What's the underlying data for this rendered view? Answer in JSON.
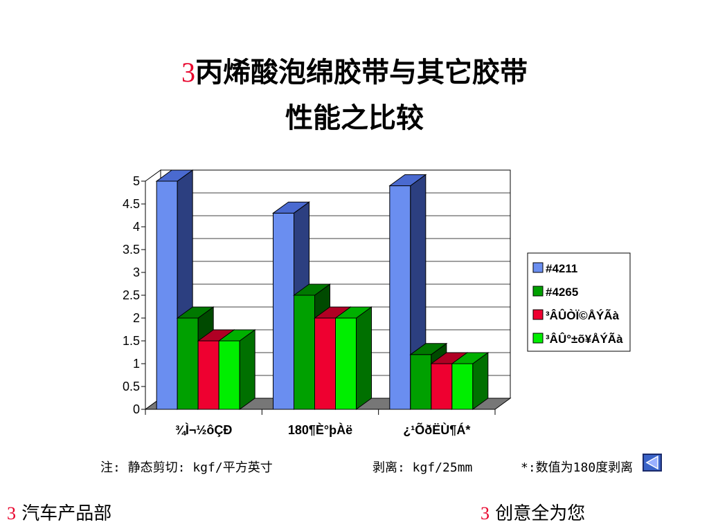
{
  "slide": {
    "title_num": "3",
    "title_line1": "丙烯酸泡绵胶带与其它胶带",
    "title_line2": "性能之比较",
    "note_shear": "注: 静态剪切: kgf/平方英寸",
    "note_peel": "剥离: kgf/25mm",
    "note_star": "*:数值为180度剥离",
    "footer_left_num": "3",
    "footer_left": "汽车产品部",
    "footer_right_num": "3",
    "footer_right": "创意全为您"
  },
  "colors": {
    "series": [
      "#6a8ef0",
      "#00a000",
      "#ee0030",
      "#00ee00"
    ],
    "series_side": [
      "#2c3f80",
      "#004a00",
      "#7a0018",
      "#007000"
    ],
    "series_top": [
      "#4a6ad0",
      "#007800",
      "#b00024",
      "#00b000"
    ],
    "floor": "#777777"
  },
  "icons": {
    "nav": "back-arrow-icon"
  },
  "chart_data": {
    "type": "bar",
    "categories": [
      "¾Ì¬½ôÇÐ",
      "180¶È°þÀë",
      "¿¹ÕðËÙ¶Á*"
    ],
    "series": [
      {
        "name": "#4211",
        "values": [
          5.0,
          4.3,
          4.9
        ]
      },
      {
        "name": "#4265",
        "values": [
          2.0,
          2.5,
          1.2
        ]
      },
      {
        "name": "³ÂÛÒÏ©ÅÝÃà",
        "values": [
          1.5,
          2.0,
          1.0
        ]
      },
      {
        "name": "³ÂÛ°±õ¥ÅÝÃà",
        "values": [
          1.5,
          2.0,
          1.0
        ]
      }
    ],
    "yticks": [
      "0",
      "0.5",
      "1",
      "1.5",
      "2",
      "2.5",
      "3",
      "3.5",
      "4",
      "4.5",
      "5"
    ],
    "ylim": [
      0,
      5
    ],
    "title": "",
    "xlabel": "",
    "ylabel": "",
    "grid": true,
    "legend": "right",
    "style": "3d"
  }
}
